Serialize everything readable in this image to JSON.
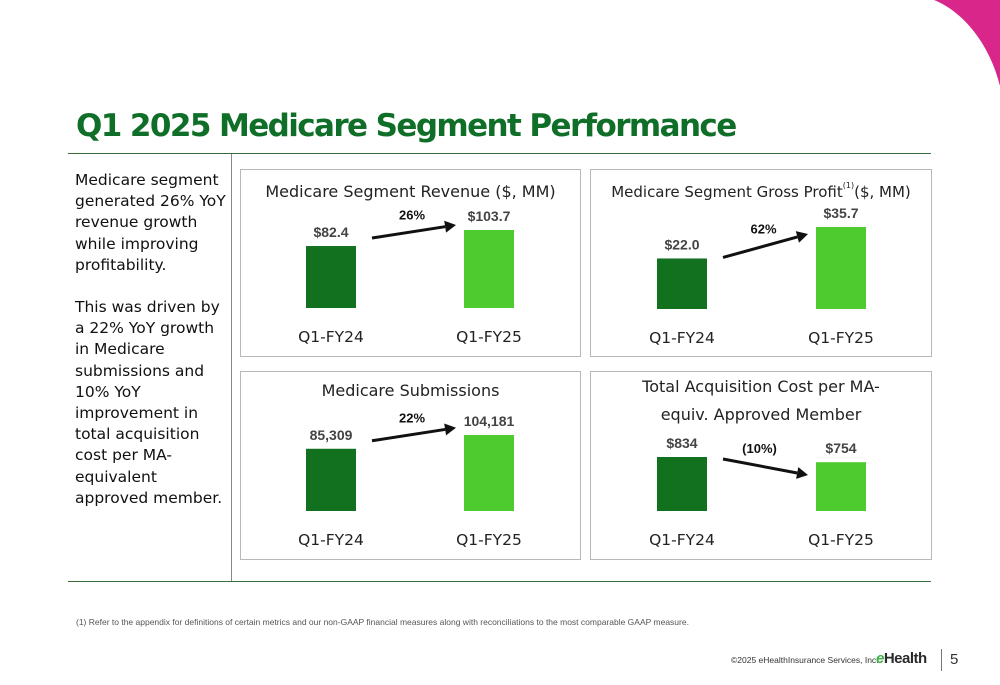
{
  "title": "Q1 2025 Medicare Segment Performance",
  "summary": [
    "Medicare segment generated 26% YoY revenue growth while improving profitability.",
    "This was driven by a 22% YoY growth in Medicare submissions and 10% YoY improvement in total acquisition cost per MA-equivalent approved member."
  ],
  "colors": {
    "bar_prior": "#11711f",
    "bar_current": "#4ecb2e",
    "title": "#0f6e27",
    "accent": "#d8268a"
  },
  "chart_data": [
    {
      "type": "bar",
      "title": "Medicare Segment Revenue ($, MM)",
      "categories": [
        "Q1-FY24",
        "Q1-FY25"
      ],
      "values": [
        82.4,
        103.7
      ],
      "labels": [
        "$82.4",
        "$103.7"
      ],
      "change": "26%",
      "direction": "up"
    },
    {
      "type": "bar",
      "title": "Medicare Segment Gross Profit",
      "title_sup": "(1)",
      "title_suffix": "($, MM)",
      "categories": [
        "Q1-FY24",
        "Q1-FY25"
      ],
      "values": [
        22.0,
        35.7
      ],
      "labels": [
        "$22.0",
        "$35.7"
      ],
      "change": "62%",
      "direction": "up"
    },
    {
      "type": "bar",
      "title": "Medicare Submissions",
      "categories": [
        "Q1-FY24",
        "Q1-FY25"
      ],
      "values": [
        85309,
        104181
      ],
      "labels": [
        "85,309",
        "104,181"
      ],
      "change": "22%",
      "direction": "up"
    },
    {
      "type": "bar",
      "title": "Total Acquisition Cost per MA-equiv. Approved Member",
      "categories": [
        "Q1-FY24",
        "Q1-FY25"
      ],
      "values": [
        834,
        754
      ],
      "labels": [
        "$834",
        "$754"
      ],
      "change": "(10%)",
      "direction": "down"
    }
  ],
  "footnote": "(1)    Refer to the appendix for definitions of certain metrics and our non-GAAP financial measures along with reconciliations to the most comparable GAAP measure.",
  "footer": {
    "copyright": "©2025 eHealthInsurance Services, Inc.",
    "brand_e": "e",
    "brand_rest": "Health",
    "page": "5"
  }
}
